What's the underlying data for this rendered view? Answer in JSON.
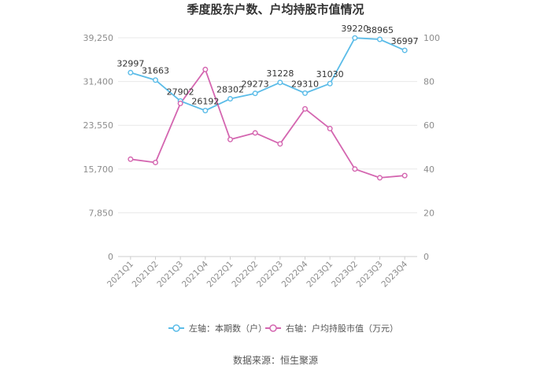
{
  "chart_data": {
    "type": "line",
    "title": "季度股东户数、户均持股市值情况",
    "categories": [
      "2021Q1",
      "2021Q2",
      "2021Q3",
      "2021Q4",
      "2022Q1",
      "2022Q2",
      "2022Q3",
      "2022Q4",
      "2023Q1",
      "2023Q2",
      "2023Q3",
      "2023Q4"
    ],
    "y_left": {
      "min": 0,
      "max": 39250,
      "ticks": [
        "0",
        "7,850",
        "15,700",
        "23,550",
        "31,400",
        "39,250"
      ],
      "tick_values": [
        0,
        7850,
        15700,
        23550,
        31400,
        39250
      ]
    },
    "y_right": {
      "min": 0,
      "max": 100,
      "ticks": [
        "0",
        "20",
        "40",
        "60",
        "80",
        "100"
      ],
      "tick_values": [
        0,
        20,
        40,
        60,
        80,
        100
      ]
    },
    "series": [
      {
        "name": "左轴：本期数（户）",
        "axis": "left",
        "color": "#5bbce8",
        "values": [
          32997,
          31663,
          27902,
          26192,
          28302,
          29273,
          31228,
          29310,
          31030,
          39220,
          38965,
          36997
        ],
        "labels": [
          "32997",
          "31663",
          "27902",
          "26192",
          "28302",
          "29273",
          "31228",
          "29310",
          "31030",
          "39220",
          "38965",
          "36997"
        ]
      },
      {
        "name": "右轴：户均持股市值（万元）",
        "axis": "right",
        "color": "#d466b0",
        "values": [
          44.5,
          43.0,
          70.0,
          85.5,
          53.5,
          56.5,
          51.5,
          67.5,
          58.5,
          40.0,
          36.0,
          37.0
        ]
      }
    ],
    "grid": true,
    "legend_position": "bottom"
  },
  "footer": {
    "source": "数据来源：恒生聚源"
  }
}
